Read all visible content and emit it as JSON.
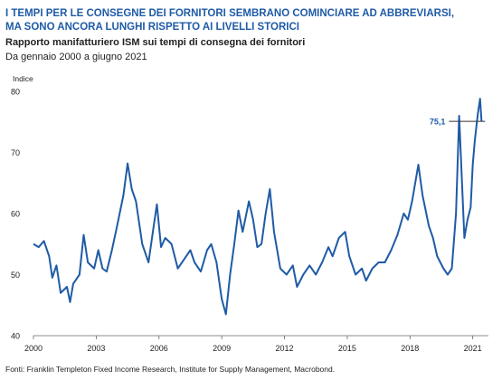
{
  "chart_data": {
    "type": "line",
    "title": [
      "I TEMPI PER LE CONSEGNE DEI FORNITORI SEMBRANO COMINCIARE AD ABBREVIARSI,",
      "MA SONO ANCORA LUNGHI RISPETTO AI LIVELLI STORICI"
    ],
    "subtitle": "Rapporto manifatturiero ISM sui tempi di consegna dei fornitori",
    "period": "Da gennaio 2000 a giugno 2021",
    "y_label": "Indice",
    "source": "Fonti: Franklin Templeton Fixed Income Research, Institute for Supply Management, Macrobond.",
    "color": "#1f5ba6",
    "x": [
      2000.0,
      2000.25,
      2000.5,
      2000.75,
      2000.9,
      2001.1,
      2001.3,
      2001.6,
      2001.75,
      2001.9,
      2002.2,
      2002.4,
      2002.6,
      2002.9,
      2003.1,
      2003.3,
      2003.5,
      2003.75,
      2004.0,
      2004.3,
      2004.5,
      2004.7,
      2004.9,
      2005.2,
      2005.5,
      2005.75,
      2005.9,
      2006.1,
      2006.3,
      2006.6,
      2006.9,
      2007.2,
      2007.5,
      2007.7,
      2008.0,
      2008.3,
      2008.5,
      2008.75,
      2009.0,
      2009.2,
      2009.4,
      2009.6,
      2009.8,
      2010.0,
      2010.3,
      2010.5,
      2010.7,
      2010.9,
      2011.1,
      2011.3,
      2011.5,
      2011.8,
      2012.1,
      2012.4,
      2012.6,
      2012.9,
      2013.2,
      2013.5,
      2013.8,
      2014.1,
      2014.3,
      2014.6,
      2014.9,
      2015.1,
      2015.4,
      2015.7,
      2015.9,
      2016.2,
      2016.5,
      2016.8,
      2017.1,
      2017.4,
      2017.7,
      2017.9,
      2018.1,
      2018.4,
      2018.6,
      2018.9,
      2019.1,
      2019.3,
      2019.6,
      2019.8,
      2020.0,
      2020.2,
      2020.35,
      2020.45,
      2020.6,
      2020.75,
      2020.9,
      2021.0,
      2021.1,
      2021.25,
      2021.35,
      2021.42
    ],
    "values": [
      55,
      54.5,
      55.5,
      53,
      49.5,
      51.5,
      47,
      48,
      45.5,
      48.5,
      50,
      56.5,
      52,
      51,
      54,
      51,
      50.5,
      54,
      58,
      63,
      68.2,
      64,
      62,
      55,
      52,
      58,
      61.5,
      54.5,
      56,
      55,
      51,
      52.5,
      54,
      52,
      50.5,
      54,
      55,
      52,
      46,
      43.5,
      50,
      55,
      60.5,
      57,
      62,
      59,
      54.5,
      55,
      60,
      64,
      57,
      51,
      50,
      51.5,
      48,
      50,
      51.5,
      50,
      52,
      54.5,
      53,
      56,
      57,
      53,
      50,
      51,
      49,
      51,
      52,
      52,
      54,
      56.5,
      60,
      59,
      62,
      68,
      63,
      58,
      56,
      53,
      51,
      50,
      51,
      60,
      76,
      68,
      56,
      59,
      61,
      68,
      72,
      76.5,
      78.8,
      75.1
    ],
    "annotation": {
      "value": 75.1,
      "label": "75,1"
    },
    "xlim": [
      2000,
      2021.75
    ],
    "xticks": [
      2000,
      2003,
      2006,
      2009,
      2012,
      2015,
      2018,
      2021
    ],
    "ylim": [
      40,
      80
    ],
    "yticks": [
      40,
      50,
      60,
      70,
      80
    ],
    "grid": false
  }
}
